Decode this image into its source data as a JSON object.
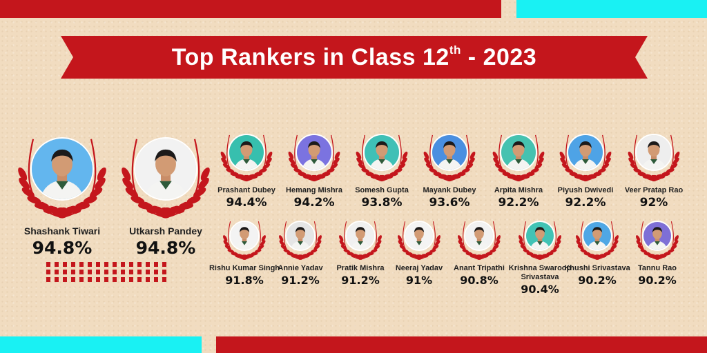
{
  "colors": {
    "red": "#c4161c",
    "cyan": "#19f1f3",
    "background": "#f1dcc0"
  },
  "banner": {
    "title": "Top Rankers in Class 12",
    "superscript": "th",
    "year_suffix": " - 2023"
  },
  "top_rankers": [
    {
      "name": "Shashank Tiwari",
      "percentage": "94.8%",
      "photo_bg": "#63b6ee"
    },
    {
      "name": "Utkarsh Pandey",
      "percentage": "94.8%",
      "photo_bg": "#f2f2f2"
    }
  ],
  "row1": [
    {
      "name": "Prashant Dubey",
      "percentage": "94.4%",
      "photo_bg": "#37bfae"
    },
    {
      "name": "Hemang Mishra",
      "percentage": "94.2%",
      "photo_bg": "#7b73e0"
    },
    {
      "name": "Somesh Gupta",
      "percentage": "93.8%",
      "photo_bg": "#3fc0b6"
    },
    {
      "name": "Mayank Dubey",
      "percentage": "93.6%",
      "photo_bg": "#4a8fe0"
    },
    {
      "name": "Arpita Mishra",
      "percentage": "92.2%",
      "photo_bg": "#46c2b0"
    },
    {
      "name": "Piyush Dwivedi",
      "percentage": "92.2%",
      "photo_bg": "#4ea3e6"
    },
    {
      "name": "Veer Pratap Rao",
      "percentage": "92%",
      "photo_bg": "#eeeeee"
    }
  ],
  "row2": [
    {
      "name": "Rishu Kumar Singh",
      "percentage": "91.8%",
      "photo_bg": "#f3f3f3"
    },
    {
      "name": "Annie Yadav",
      "percentage": "91.2%",
      "photo_bg": "#e5e5e5"
    },
    {
      "name": "Pratik Mishra",
      "percentage": "91.2%",
      "photo_bg": "#f0f0f0"
    },
    {
      "name": "Neeraj Yadav",
      "percentage": "91%",
      "photo_bg": "#f4f4f4"
    },
    {
      "name": "Anant Tripathi",
      "percentage": "90.8%",
      "photo_bg": "#f2f2f2"
    },
    {
      "name": "Krishna Swaroop Srivastava",
      "name_line1": "Krishna Swaroop",
      "name_line2": "Srivastava",
      "percentage": "90.4%",
      "photo_bg": "#41c3b5"
    },
    {
      "name": "Khushi Srivastava",
      "percentage": "90.2%",
      "photo_bg": "#4fa7e5"
    },
    {
      "name": "Tannu Rao",
      "percentage": "90.2%",
      "photo_bg": "#7e6fd6"
    }
  ]
}
